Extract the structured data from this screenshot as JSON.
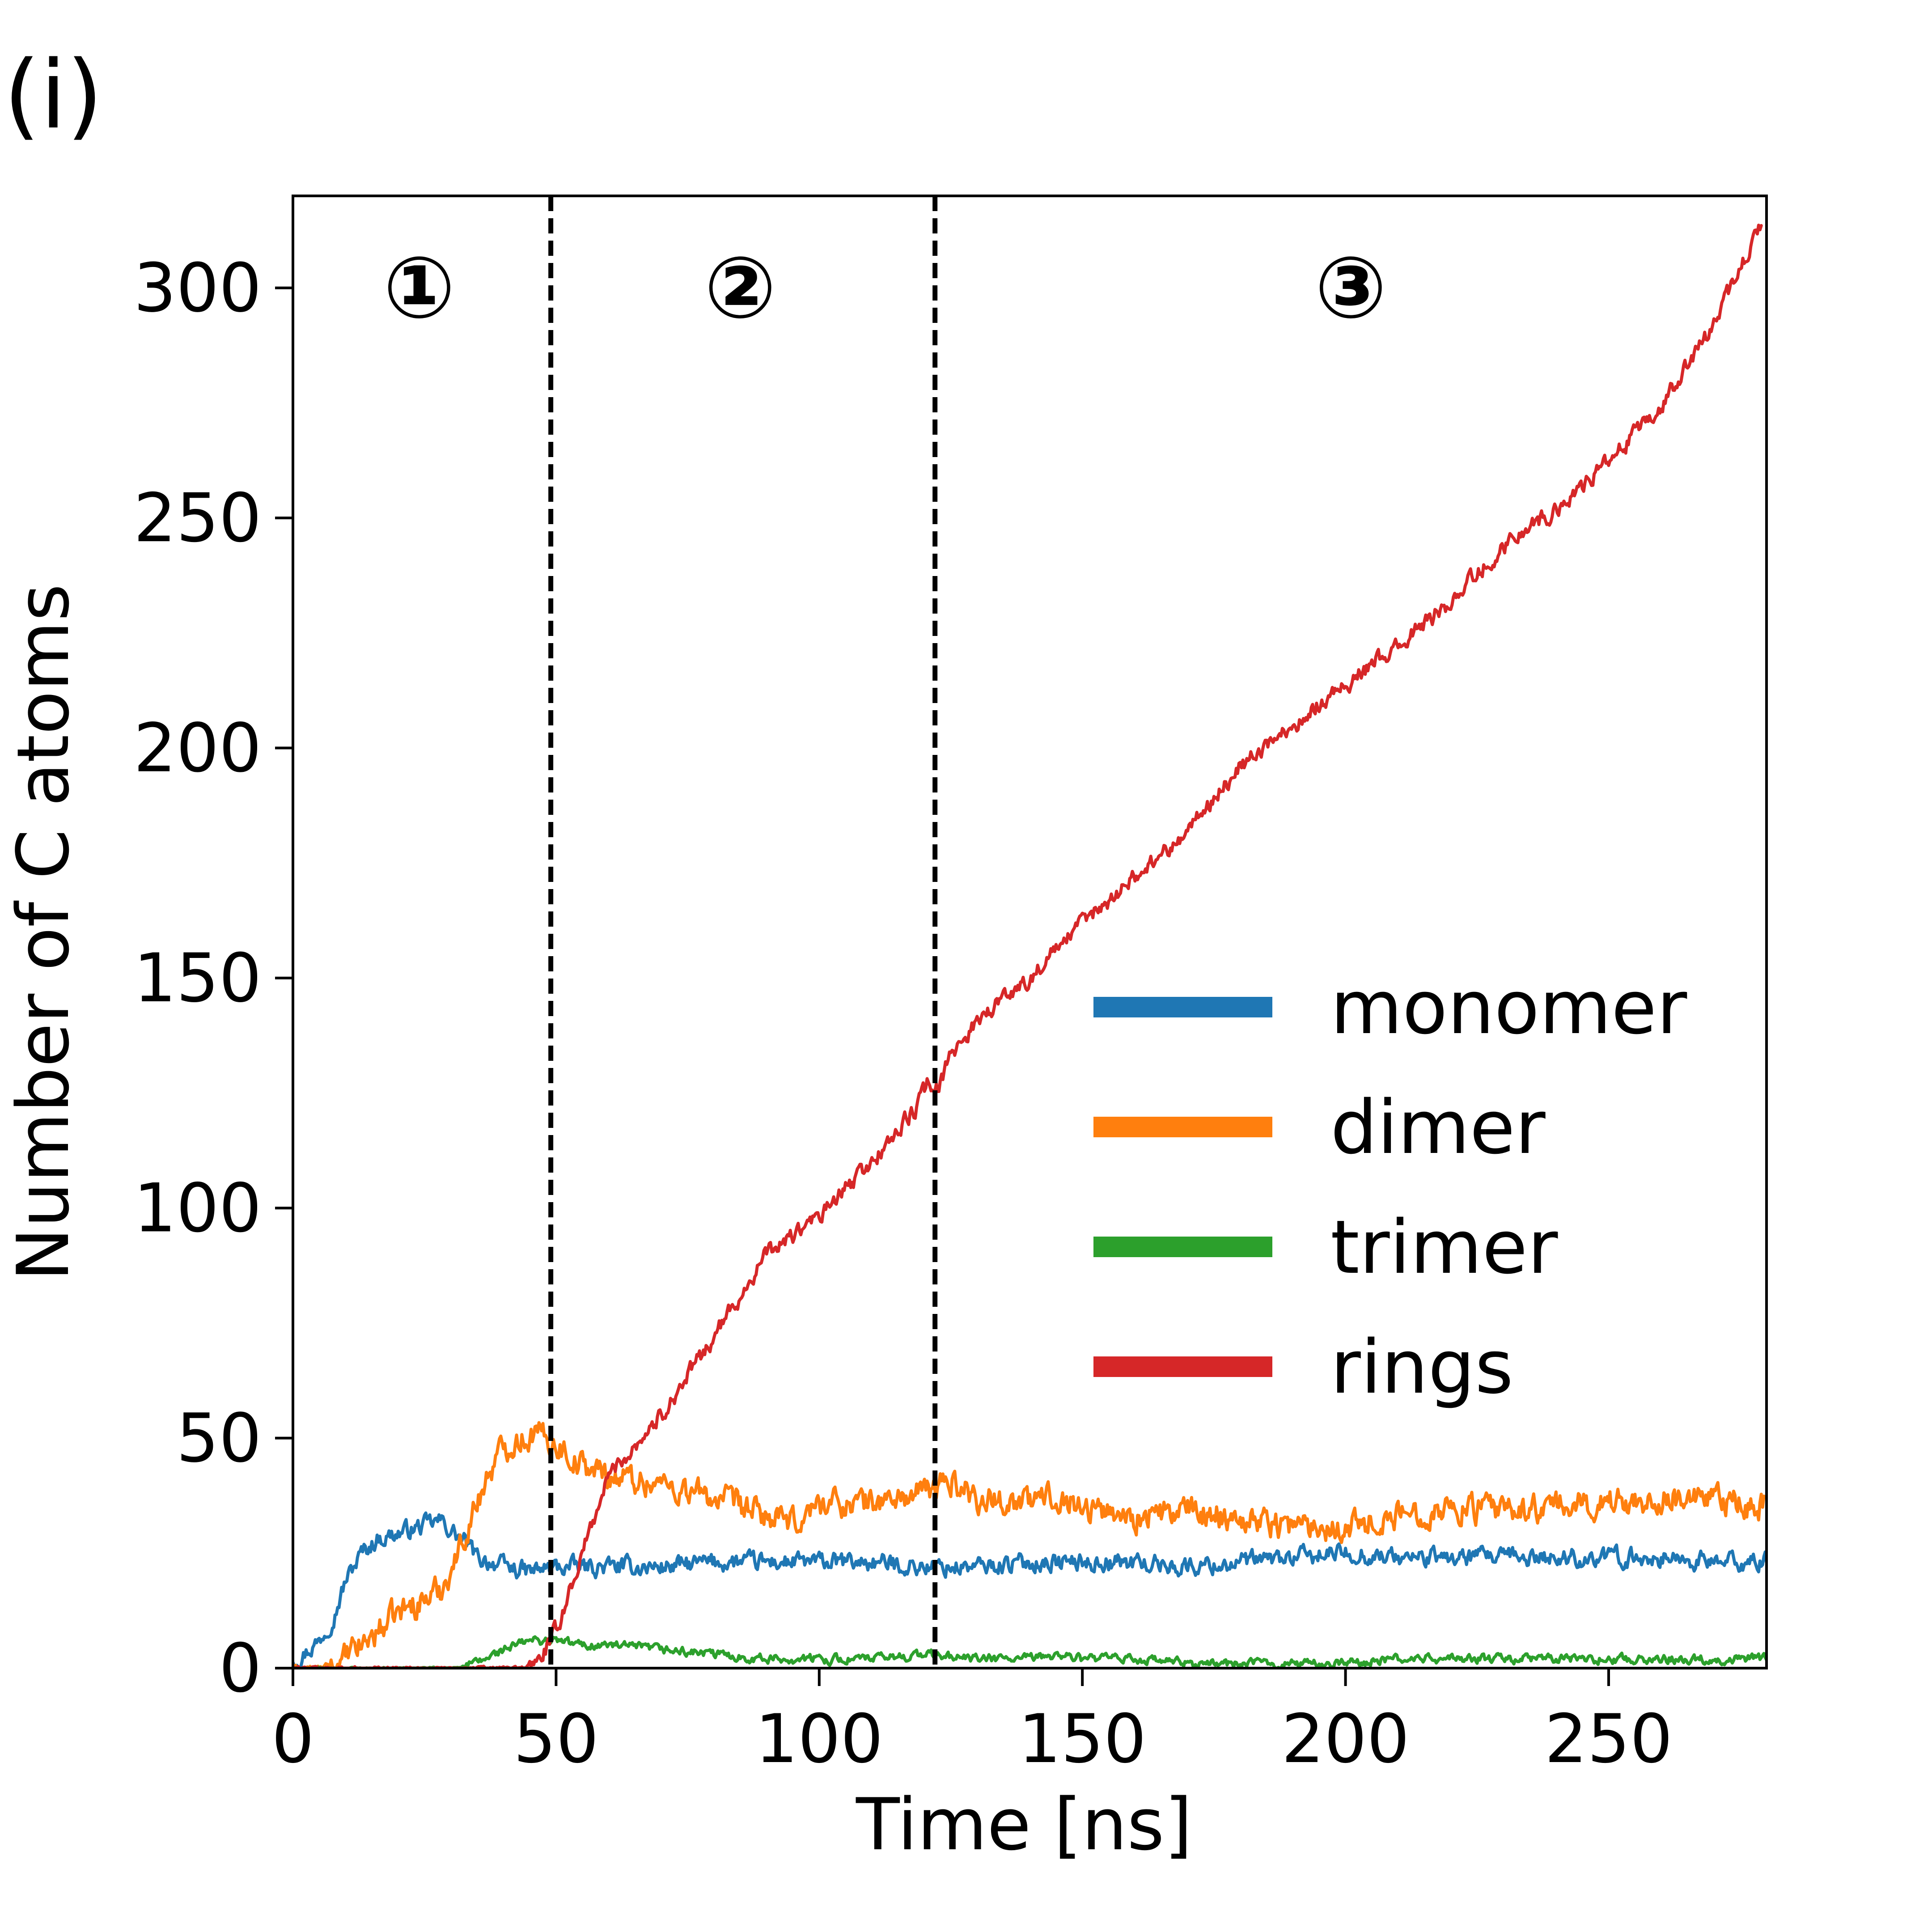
{
  "panel_label": "(i)",
  "chart_data": {
    "type": "line",
    "title": "",
    "xlabel": "Time [ns]",
    "ylabel": "Number of C atoms",
    "xlim": [
      0,
      280
    ],
    "ylim": [
      0,
      320
    ],
    "xticks": [
      0,
      50,
      100,
      150,
      200,
      250
    ],
    "yticks": [
      0,
      50,
      100,
      150,
      200,
      250,
      300
    ],
    "grid": false,
    "legend_position": "center-right",
    "phase_dividers": [
      49,
      122
    ],
    "phase_labels": [
      {
        "text": "①",
        "x": 24,
        "y": 300
      },
      {
        "text": "②",
        "x": 85,
        "y": 300
      },
      {
        "text": "③",
        "x": 201,
        "y": 300
      }
    ],
    "series": [
      {
        "name": "monomer",
        "color": "#1f77b4",
        "noise": 1.6,
        "x": [
          0,
          2,
          5,
          8,
          10,
          13,
          16,
          19,
          22,
          25,
          28,
          30,
          33,
          35,
          38,
          40,
          45,
          50,
          60,
          70,
          80,
          90,
          100,
          110,
          120,
          130,
          140,
          150,
          160,
          170,
          180,
          190,
          200,
          210,
          220,
          230,
          240,
          250,
          260,
          270,
          280
        ],
        "y": [
          2,
          3,
          6,
          12,
          19,
          25,
          28,
          29,
          30,
          31,
          32,
          30,
          27,
          24,
          23,
          22,
          21,
          22,
          22,
          22,
          23,
          23,
          23,
          23,
          22,
          22,
          23,
          23,
          23,
          22,
          23,
          24,
          25,
          24,
          24,
          24,
          24,
          24,
          24,
          23,
          23
        ]
      },
      {
        "name": "dimer",
        "color": "#ff7f0e",
        "noise": 2.5,
        "x": [
          0,
          5,
          9,
          12,
          15,
          20,
          25,
          28,
          31,
          34,
          37,
          40,
          43,
          46,
          48,
          50,
          55,
          60,
          70,
          80,
          90,
          95,
          100,
          110,
          120,
          125,
          130,
          140,
          145,
          150,
          160,
          170,
          180,
          190,
          200,
          210,
          220,
          230,
          240,
          250,
          260,
          270,
          280
        ],
        "y": [
          0,
          0,
          1,
          4,
          7,
          12,
          15,
          17,
          24,
          33,
          42,
          48,
          50,
          51,
          50,
          49,
          44,
          42,
          40,
          37,
          33,
          31,
          36,
          36,
          38,
          41,
          37,
          36,
          38,
          35,
          33,
          34,
          33,
          31,
          31,
          33,
          35,
          34,
          35,
          36,
          37,
          36,
          35
        ]
      },
      {
        "name": "trimer",
        "color": "#2ca02c",
        "noise": 0.8,
        "x": [
          0,
          20,
          30,
          35,
          40,
          45,
          50,
          55,
          60,
          70,
          80,
          90,
          100,
          110,
          120,
          130,
          140,
          145,
          150,
          160,
          170,
          180,
          190,
          200,
          210,
          220,
          230,
          240,
          250,
          260,
          270,
          280
        ],
        "y": [
          0,
          0,
          0,
          1,
          4,
          6,
          6,
          5,
          5,
          4,
          3,
          2,
          2,
          2,
          3,
          2,
          2,
          3,
          2,
          2,
          1,
          1,
          1,
          1,
          2,
          2,
          2,
          2,
          2,
          2,
          2,
          2
        ]
      },
      {
        "name": "rings",
        "color": "#d62728",
        "noise": 1.5,
        "x": [
          0,
          40,
          44,
          47,
          50,
          55,
          60,
          70,
          80,
          90,
          100,
          110,
          118,
          121,
          122,
          125,
          130,
          140,
          150,
          160,
          170,
          180,
          190,
          200,
          210,
          220,
          230,
          240,
          250,
          260,
          270,
          279
        ],
        "y": [
          0,
          0,
          0,
          2,
          8,
          25,
          42,
          55,
          72,
          90,
          98,
          110,
          121,
          128,
          124,
          133,
          141,
          150,
          162,
          172,
          182,
          196,
          205,
          214,
          222,
          232,
          244,
          252,
          262,
          274,
          292,
          314
        ]
      }
    ]
  }
}
